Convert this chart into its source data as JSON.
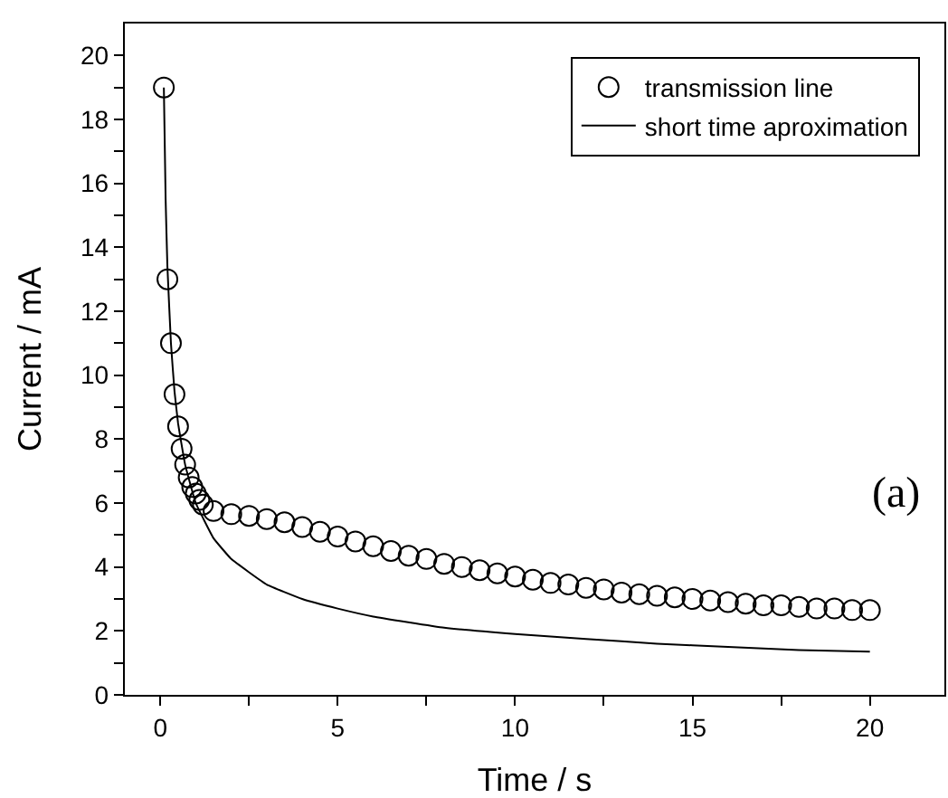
{
  "chart_data": {
    "type": "scatter",
    "xlabel": "Time / s",
    "ylabel": "Current / mA",
    "xlim": [
      -1,
      22.1
    ],
    "ylim": [
      0,
      21
    ],
    "xticks": [
      0,
      {
        "value": 2.5,
        "label": null
      },
      5,
      {
        "value": 7.5,
        "label": null
      },
      10,
      {
        "value": 12.5,
        "label": null
      },
      15,
      {
        "value": 17.5,
        "label": null
      },
      20
    ],
    "yticks": [
      0,
      {
        "value": 1,
        "label": null
      },
      2,
      {
        "value": 3,
        "label": null
      },
      4,
      {
        "value": 5,
        "label": null
      },
      6,
      {
        "value": 7,
        "label": null
      },
      8,
      {
        "value": 9,
        "label": null
      },
      10,
      {
        "value": 11,
        "label": null
      },
      12,
      {
        "value": 13,
        "label": null
      },
      14,
      {
        "value": 15,
        "label": null
      },
      16,
      {
        "value": 17,
        "label": null
      },
      18,
      {
        "value": 19,
        "label": null
      },
      20
    ],
    "grid": false,
    "legend": "top right",
    "annotations": [
      "(a)"
    ],
    "series": [
      {
        "name": "transmission line",
        "marker": "circle",
        "color": "#000000",
        "x": [
          0.1,
          0.2,
          0.3,
          0.4,
          0.5,
          0.6,
          0.7,
          0.8,
          0.9,
          1.0,
          1.1,
          1.2,
          1.5,
          2,
          2.5,
          3,
          3.5,
          4,
          4.5,
          5,
          5.5,
          6,
          6.5,
          7,
          7.5,
          8,
          8.5,
          9,
          9.5,
          10,
          10.5,
          11,
          11.5,
          12,
          12.5,
          13,
          13.5,
          14,
          14.5,
          15,
          15.5,
          16,
          16.5,
          17,
          17.5,
          18,
          18.5,
          19,
          19.5,
          20
        ],
        "values": [
          19.0,
          13.0,
          11.0,
          9.4,
          8.4,
          7.7,
          7.2,
          6.8,
          6.5,
          6.3,
          6.1,
          5.95,
          5.75,
          5.65,
          5.6,
          5.5,
          5.4,
          5.25,
          5.1,
          4.95,
          4.8,
          4.65,
          4.5,
          4.35,
          4.25,
          4.1,
          4.0,
          3.9,
          3.8,
          3.7,
          3.6,
          3.5,
          3.45,
          3.35,
          3.3,
          3.2,
          3.15,
          3.1,
          3.05,
          3.0,
          2.95,
          2.9,
          2.85,
          2.8,
          2.8,
          2.75,
          2.7,
          2.7,
          2.65,
          2.65
        ]
      },
      {
        "name": "short time aproximation",
        "type": "line",
        "line_style": "solid",
        "color": "#000000",
        "x": [
          0.1,
          0.15,
          0.2,
          0.3,
          0.4,
          0.5,
          0.7,
          1,
          1.5,
          2,
          3,
          4,
          5,
          6,
          8,
          10,
          12,
          14,
          16,
          18,
          20
        ],
        "values": [
          19.0,
          15.5,
          13.4,
          11.0,
          9.5,
          8.5,
          7.2,
          6.0,
          4.9,
          4.25,
          3.45,
          3.0,
          2.7,
          2.45,
          2.1,
          1.9,
          1.75,
          1.6,
          1.5,
          1.4,
          1.35
        ]
      }
    ]
  }
}
